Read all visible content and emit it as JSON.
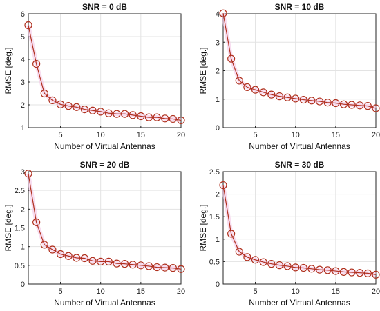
{
  "chart_data": [
    {
      "type": "line",
      "title": "SNR = 0 dB",
      "xlabel": "Number of Virtual Antennas",
      "ylabel": "RMSE [deg.]",
      "xlim": [
        1,
        20
      ],
      "ylim": [
        1,
        6
      ],
      "xticks": [
        5,
        10,
        15,
        20
      ],
      "yticks": [
        1,
        2,
        3,
        4,
        5,
        6
      ],
      "grid": true,
      "line_color": "#b0301e",
      "marker": "circle",
      "x": [
        1,
        2,
        3,
        4,
        5,
        6,
        7,
        8,
        9,
        10,
        11,
        12,
        13,
        14,
        15,
        16,
        17,
        18,
        19,
        20
      ],
      "series": [
        {
          "values": [
            5.5,
            3.8,
            2.5,
            2.2,
            2.02,
            1.95,
            1.9,
            1.8,
            1.75,
            1.7,
            1.63,
            1.6,
            1.6,
            1.55,
            1.5,
            1.45,
            1.45,
            1.4,
            1.38,
            1.32
          ]
        }
      ]
    },
    {
      "type": "line",
      "title": "SNR = 10 dB",
      "xlabel": "Number of Virtual Antennas",
      "ylabel": "RMSE [deg.]",
      "xlim": [
        1,
        20
      ],
      "ylim": [
        0,
        4
      ],
      "xticks": [
        5,
        10,
        15,
        20
      ],
      "yticks": [
        0,
        1,
        2,
        3,
        4
      ],
      "grid": true,
      "line_color": "#b0301e",
      "marker": "circle",
      "x": [
        1,
        2,
        3,
        4,
        5,
        6,
        7,
        8,
        9,
        10,
        11,
        12,
        13,
        14,
        15,
        16,
        17,
        18,
        19,
        20
      ],
      "series": [
        {
          "values": [
            4.02,
            2.42,
            1.65,
            1.42,
            1.33,
            1.24,
            1.16,
            1.1,
            1.06,
            1.02,
            0.98,
            0.95,
            0.92,
            0.88,
            0.86,
            0.82,
            0.8,
            0.78,
            0.76,
            0.68
          ]
        }
      ]
    },
    {
      "type": "line",
      "title": "SNR = 20 dB",
      "xlabel": "Number of Virtual Antennas",
      "ylabel": "RMSE [deg.]",
      "xlim": [
        1,
        20
      ],
      "ylim": [
        0,
        3
      ],
      "xticks": [
        5,
        10,
        15,
        20
      ],
      "yticks": [
        0,
        0.5,
        1,
        1.5,
        2,
        2.5,
        3
      ],
      "grid": true,
      "line_color": "#b0301e",
      "marker": "circle",
      "x": [
        1,
        2,
        3,
        4,
        5,
        6,
        7,
        8,
        9,
        10,
        11,
        12,
        13,
        14,
        15,
        16,
        17,
        18,
        19,
        20
      ],
      "series": [
        {
          "values": [
            2.95,
            1.65,
            1.05,
            0.92,
            0.8,
            0.75,
            0.7,
            0.69,
            0.62,
            0.6,
            0.6,
            0.55,
            0.54,
            0.52,
            0.5,
            0.48,
            0.45,
            0.44,
            0.43,
            0.4
          ]
        }
      ]
    },
    {
      "type": "line",
      "title": "SNR = 30 dB",
      "xlabel": "Number of Virtual Antennas",
      "ylabel": "RMSE [deg.]",
      "xlim": [
        1,
        20
      ],
      "ylim": [
        0,
        2.5
      ],
      "xticks": [
        5,
        10,
        15,
        20
      ],
      "yticks": [
        0,
        0.5,
        1,
        1.5,
        2,
        2.5
      ],
      "grid": true,
      "line_color": "#b0301e",
      "marker": "circle",
      "x": [
        1,
        2,
        3,
        4,
        5,
        6,
        7,
        8,
        9,
        10,
        11,
        12,
        13,
        14,
        15,
        16,
        17,
        18,
        19,
        20
      ],
      "series": [
        {
          "values": [
            2.2,
            1.12,
            0.72,
            0.6,
            0.54,
            0.49,
            0.45,
            0.42,
            0.4,
            0.37,
            0.36,
            0.34,
            0.32,
            0.31,
            0.29,
            0.27,
            0.26,
            0.25,
            0.24,
            0.21
          ]
        }
      ]
    }
  ]
}
